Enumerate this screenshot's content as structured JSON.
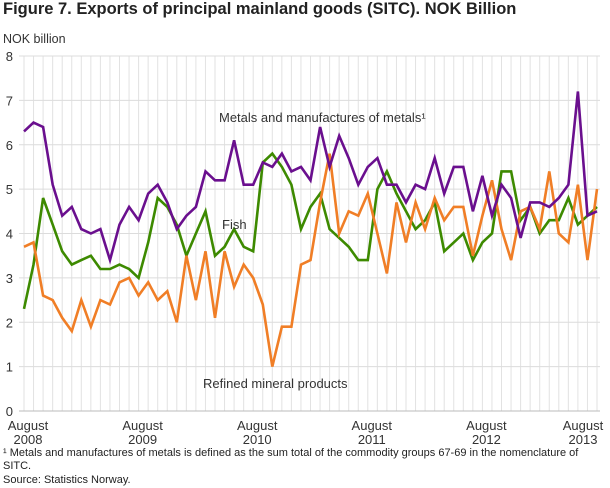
{
  "title": "Figure 7. Exports of principal mainland goods (SITC). NOK Billion",
  "footnote": "¹ Metals and manufactures of metals is defined as the sum total of the commodity groups 67-69 in the nomenclature of SITC.",
  "source": "Source: Statistics Norway.",
  "chart_data": {
    "type": "line",
    "ylabel": "NOK billion",
    "ylim": [
      0,
      8
    ],
    "yticks": [
      0,
      1,
      2,
      3,
      4,
      5,
      6,
      7,
      8
    ],
    "grid": true,
    "x_start": "August 2008",
    "x_end": "August 2013",
    "x_frequency": "monthly",
    "xtick_labels": [
      {
        "month": "August",
        "year": "2008",
        "index": 0
      },
      {
        "month": "August",
        "year": "2009",
        "index": 12
      },
      {
        "month": "August",
        "year": "2010",
        "index": 24
      },
      {
        "month": "August",
        "year": "2011",
        "index": 36
      },
      {
        "month": "August",
        "year": "2012",
        "index": 48
      },
      {
        "month": "August",
        "year": "2013",
        "index": 60
      }
    ],
    "series": [
      {
        "name": "Metals and manufactures of metals¹",
        "color": "#6a0f8e",
        "values": [
          6.3,
          6.5,
          6.4,
          5.1,
          4.4,
          4.6,
          4.1,
          4.0,
          4.1,
          3.4,
          4.2,
          4.6,
          4.3,
          4.9,
          5.1,
          4.7,
          4.1,
          4.4,
          4.6,
          5.4,
          5.2,
          5.2,
          6.1,
          5.1,
          5.1,
          5.6,
          5.5,
          5.8,
          5.4,
          5.5,
          5.2,
          6.4,
          5.5,
          6.2,
          5.7,
          5.1,
          5.5,
          5.7,
          5.1,
          5.1,
          4.7,
          5.1,
          5.0,
          5.7,
          4.9,
          5.5,
          5.5,
          4.5,
          5.3,
          4.4,
          5.1,
          4.8,
          3.9,
          4.7,
          4.7,
          4.6,
          4.8,
          5.1,
          7.2,
          4.4,
          4.5
        ]
      },
      {
        "name": "Fish",
        "color": "#3d8a00",
        "values": [
          2.3,
          3.3,
          4.8,
          4.2,
          3.6,
          3.3,
          3.4,
          3.5,
          3.2,
          3.2,
          3.3,
          3.2,
          3.0,
          3.8,
          4.8,
          4.6,
          4.2,
          3.5,
          4.0,
          4.5,
          3.5,
          3.7,
          4.1,
          3.7,
          3.6,
          5.6,
          5.8,
          5.5,
          5.1,
          4.1,
          4.6,
          4.9,
          4.1,
          3.9,
          3.7,
          3.4,
          3.4,
          5.0,
          5.4,
          4.9,
          4.5,
          4.1,
          4.3,
          4.7,
          3.6,
          3.8,
          4.0,
          3.4,
          3.8,
          4.0,
          5.4,
          5.4,
          4.3,
          4.6,
          4.0,
          4.3,
          4.3,
          4.8,
          4.2,
          4.4,
          4.6
        ]
      },
      {
        "name": "Refined mineral products",
        "color": "#f07e26",
        "values": [
          3.7,
          3.8,
          2.6,
          2.5,
          2.1,
          1.8,
          2.5,
          1.9,
          2.5,
          2.4,
          2.9,
          3.0,
          2.6,
          2.9,
          2.5,
          2.7,
          2.0,
          3.5,
          2.5,
          3.6,
          2.1,
          3.6,
          2.8,
          3.3,
          3.0,
          2.4,
          1.0,
          1.9,
          1.9,
          3.3,
          3.4,
          4.7,
          5.8,
          4.0,
          4.5,
          4.4,
          4.9,
          4.0,
          3.1,
          4.7,
          3.8,
          4.7,
          4.1,
          4.8,
          4.3,
          4.6,
          4.6,
          3.5,
          4.4,
          5.2,
          4.1,
          3.4,
          4.5,
          4.6,
          4.1,
          5.4,
          4.0,
          3.8,
          5.1,
          3.4,
          5.0
        ]
      }
    ]
  }
}
